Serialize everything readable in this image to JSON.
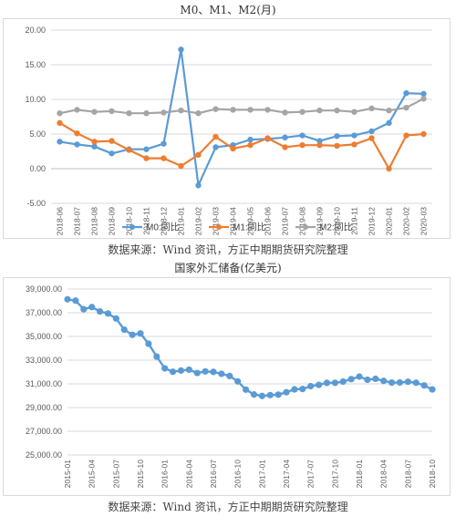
{
  "chart_data": [
    {
      "type": "line",
      "title": "M0、M1、M2(月)",
      "categories": [
        "2018-06",
        "2018-07",
        "2018-08",
        "2018-09",
        "2018-10",
        "2018-11",
        "2018-12",
        "2019-01",
        "2019-02",
        "2019-03",
        "2019-04",
        "2019-05",
        "2019-06",
        "2019-07",
        "2019-08",
        "2019-09",
        "2019-10",
        "2019-11",
        "2019-12",
        "2020-01",
        "2020-02",
        "2020-03"
      ],
      "ylim": [
        -5,
        20
      ],
      "yticks": [
        "-5.00",
        "0.00",
        "5.00",
        "10.00",
        "15.00",
        "20.00"
      ],
      "grid": true,
      "legend": "bottom",
      "series": [
        {
          "name": "M0:同比",
          "color": "#5b9bd5",
          "values": [
            3.9,
            3.5,
            3.2,
            2.2,
            2.8,
            2.8,
            3.6,
            17.2,
            -2.4,
            3.1,
            3.4,
            4.2,
            4.3,
            4.5,
            4.8,
            4.0,
            4.7,
            4.8,
            5.4,
            6.6,
            10.9,
            10.8
          ]
        },
        {
          "name": "M1:同比",
          "color": "#ed7d31",
          "values": [
            6.6,
            5.1,
            3.9,
            4.0,
            2.7,
            1.5,
            1.5,
            0.4,
            2.0,
            4.6,
            2.9,
            3.4,
            4.4,
            3.1,
            3.4,
            3.4,
            3.3,
            3.5,
            4.4,
            0.0,
            4.8,
            5.0
          ]
        },
        {
          "name": "M2:同比",
          "color": "#a5a5a5",
          "values": [
            8.0,
            8.5,
            8.2,
            8.3,
            8.0,
            8.0,
            8.1,
            8.4,
            8.0,
            8.6,
            8.5,
            8.5,
            8.5,
            8.1,
            8.2,
            8.4,
            8.4,
            8.2,
            8.7,
            8.4,
            8.8,
            10.1
          ]
        }
      ]
    },
    {
      "type": "line",
      "title": "国家外汇储备(亿美元)",
      "categories": [
        "2015-01",
        "2015-02",
        "2015-03",
        "2015-04",
        "2015-05",
        "2015-06",
        "2015-07",
        "2015-08",
        "2015-09",
        "2015-10",
        "2015-11",
        "2015-12",
        "2016-01",
        "2016-02",
        "2016-03",
        "2016-04",
        "2016-05",
        "2016-06",
        "2016-07",
        "2016-08",
        "2016-09",
        "2016-10",
        "2016-11",
        "2016-12",
        "2017-01",
        "2017-02",
        "2017-03",
        "2017-04",
        "2017-05",
        "2017-06",
        "2017-07",
        "2017-08",
        "2017-09",
        "2017-10",
        "2017-11",
        "2017-12",
        "2018-01",
        "2018-02",
        "2018-03",
        "2018-04",
        "2018-05",
        "2018-06",
        "2018-07",
        "2018-08",
        "2018-09",
        "2018-10"
      ],
      "xtick_labels": [
        "2015-01",
        "2015-04",
        "2015-07",
        "2015-10",
        "2016-01",
        "2016-04",
        "2016-07",
        "2016-10",
        "2017-01",
        "2017-04",
        "2017-07",
        "2017-10",
        "2018-01",
        "2018-04",
        "2018-07",
        "2018-10"
      ],
      "ylim": [
        25000,
        39000
      ],
      "yticks": [
        "25,000.00",
        "27,000.00",
        "29,000.00",
        "31,000.00",
        "33,000.00",
        "35,000.00",
        "37,000.00",
        "39,000.00"
      ],
      "grid": true,
      "legend": "none",
      "series": [
        {
          "color": "#5b9bd5",
          "values": [
            38134,
            38020,
            37300,
            37481,
            37111,
            36938,
            36513,
            35574,
            35141,
            35256,
            34383,
            33304,
            32309,
            32023,
            32125,
            32197,
            31917,
            32052,
            32011,
            31852,
            31664,
            31207,
            30516,
            30105,
            29982,
            30051,
            30091,
            30295,
            30536,
            30568,
            30807,
            30915,
            31085,
            31092,
            31193,
            31399,
            31615,
            31345,
            31428,
            31249,
            31106,
            31121,
            31179,
            31097,
            30870,
            30531
          ]
        }
      ]
    }
  ],
  "source_note": "数据来源：Wind 资讯，方正中期期货研究院整理"
}
